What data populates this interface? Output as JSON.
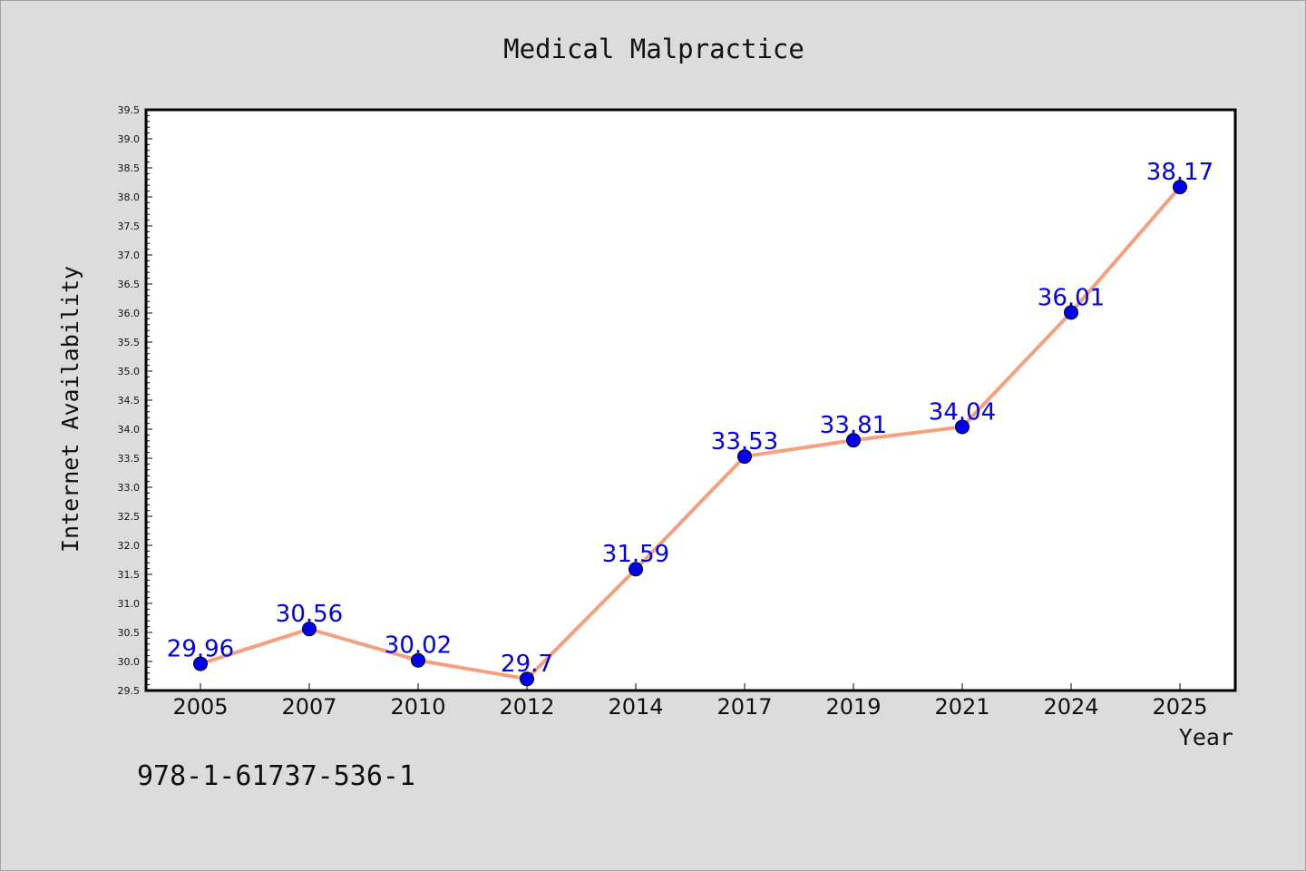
{
  "chart_data": {
    "type": "line",
    "title": "Medical Malpractice",
    "xlabel": "Year",
    "ylabel": "Internet Availability",
    "categories": [
      "2005",
      "2007",
      "2010",
      "2012",
      "2014",
      "2017",
      "2019",
      "2021",
      "2024",
      "2025"
    ],
    "series": [
      {
        "values": [
          29.96,
          30.56,
          30.02,
          29.7,
          31.59,
          33.53,
          33.81,
          34.04,
          36.01,
          38.17
        ]
      }
    ],
    "data_labels": [
      "29.96",
      "30.56",
      "30.02",
      "29.7",
      "31.59",
      "33.53",
      "33.81",
      "34.04",
      "36.01",
      "38.17"
    ],
    "ylim": [
      29.5,
      39.5
    ],
    "ytick_step": 0.5,
    "grid": false,
    "line_color": "#f4a07e",
    "marker_color": "#0000ee",
    "label_color": "#0000ee",
    "background_color": "#dcdcdc",
    "plot_background": "#ffffff"
  },
  "footnote": "978-1-61737-536-1"
}
